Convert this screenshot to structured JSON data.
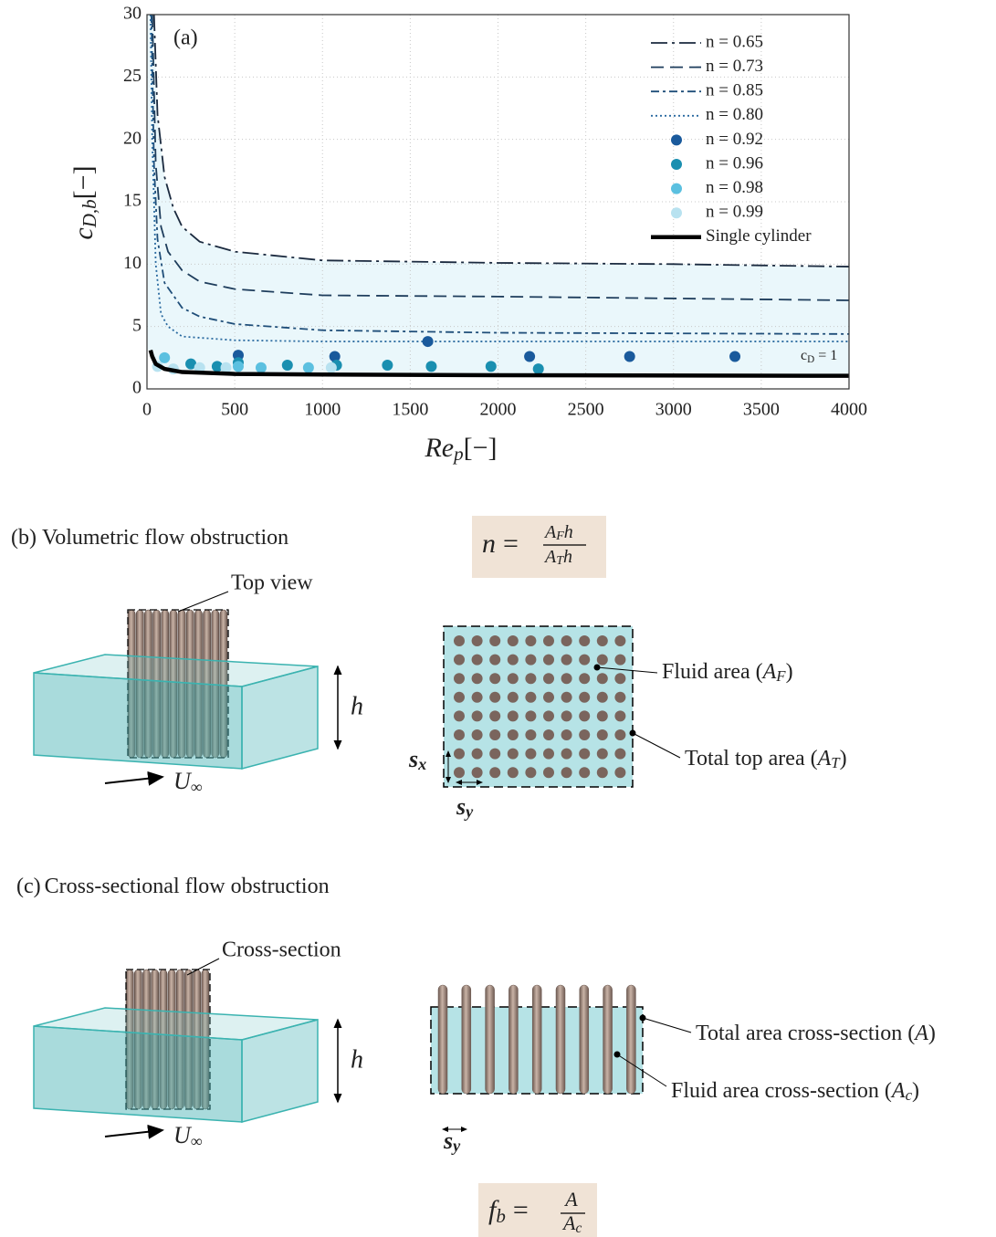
{
  "chart_data": {
    "type": "line",
    "panel_label": "(a)",
    "x_label": [
      "Re",
      "p",
      "[−]"
    ],
    "y_label": [
      "c",
      "D,b",
      "[−]"
    ],
    "annotation": [
      "c",
      "D",
      " = 1"
    ],
    "xlim": [
      0,
      4000
    ],
    "ylim": [
      0,
      30
    ],
    "xticks": [
      0,
      500,
      1000,
      1500,
      2000,
      2500,
      3000,
      3500,
      4000
    ],
    "yticks": [
      0,
      5,
      10,
      15,
      20,
      25,
      30
    ],
    "grid": true,
    "legend": "upper right",
    "band_fill": "#eaf7fb",
    "series": [
      {
        "name": "n = 0.65",
        "kind": "line",
        "linestyle": "dashdot",
        "color": "#1b2a3f",
        "x": [
          40,
          60,
          100,
          150,
          200,
          300,
          500,
          1000,
          2000,
          3000,
          4000
        ],
        "values": [
          30,
          22,
          17,
          14.5,
          13,
          11.8,
          11,
          10.3,
          10.1,
          10,
          9.8
        ]
      },
      {
        "name": "n = 0.73",
        "kind": "line",
        "linestyle": "dashed",
        "color": "#1e3d5c",
        "x": [
          30,
          50,
          80,
          120,
          200,
          300,
          500,
          1000,
          2000,
          4000
        ],
        "values": [
          30,
          18,
          13,
          11,
          9.5,
          8.6,
          8,
          7.5,
          7.4,
          7.1
        ]
      },
      {
        "name": "n = 0.85",
        "kind": "line",
        "linestyle": "dashdot-short",
        "color": "#1f4e79",
        "x": [
          25,
          40,
          60,
          100,
          200,
          300,
          500,
          1000,
          2000,
          4000
        ],
        "values": [
          30,
          18,
          12,
          8.5,
          6.5,
          5.8,
          5.2,
          4.7,
          4.5,
          4.4
        ]
      },
      {
        "name": "n = 0.80",
        "kind": "line",
        "linestyle": "dotted",
        "color": "#2a6aa0",
        "x": [
          20,
          30,
          50,
          80,
          120,
          200,
          500,
          1000,
          4000
        ],
        "values": [
          30,
          20,
          10,
          6,
          5,
          4.2,
          3.9,
          3.8,
          3.8
        ]
      },
      {
        "name": "n = 0.92",
        "kind": "scatter",
        "color": "#1a5a9c",
        "x": [
          520,
          1070,
          1600,
          2180,
          2750,
          3350
        ],
        "values": [
          2.7,
          2.6,
          3.8,
          2.6,
          2.6,
          2.6
        ]
      },
      {
        "name": "n = 0.96",
        "kind": "scatter",
        "color": "#1a8fb0",
        "x": [
          250,
          400,
          520,
          800,
          1080,
          1370,
          1620,
          1960,
          2230
        ],
        "values": [
          2.0,
          1.8,
          2.1,
          1.9,
          1.9,
          1.9,
          1.8,
          1.8,
          1.6
        ]
      },
      {
        "name": "n = 0.98",
        "kind": "scatter",
        "color": "#5bc0e0",
        "x": [
          100,
          520,
          650,
          920
        ],
        "values": [
          2.5,
          1.8,
          1.7,
          1.7
        ]
      },
      {
        "name": "n = 0.99",
        "kind": "scatter",
        "color": "#b8e2f0",
        "x": [
          60,
          150,
          300,
          450,
          1050
        ],
        "values": [
          1.8,
          1.6,
          1.7,
          1.7,
          1.7
        ]
      },
      {
        "name": "Single cylinder",
        "kind": "line",
        "linestyle": "solid",
        "color": "#000000",
        "x": [
          20,
          30,
          50,
          100,
          200,
          500,
          1000,
          2000,
          4000
        ],
        "values": [
          3.1,
          2.6,
          2.0,
          1.6,
          1.35,
          1.2,
          1.15,
          1.1,
          1.05
        ]
      }
    ]
  },
  "panel_b": {
    "label": "(b)",
    "title": "Volumetric flow obstruction",
    "top_view": "Top view",
    "h": "h",
    "u": [
      "U",
      "∞"
    ],
    "formula": {
      "lhs": "n",
      "eq": "=",
      "num": [
        "A",
        "F",
        "h"
      ],
      "den": [
        "A",
        "T",
        "h"
      ]
    },
    "fluid_area": [
      "Fluid area (",
      "A",
      "F",
      ")"
    ],
    "total_area": [
      "Total top area (",
      "A",
      "T",
      ")"
    ],
    "sx": [
      "s",
      "x"
    ],
    "sy": [
      "s",
      "y"
    ]
  },
  "panel_c": {
    "label": "(c)",
    "title": "Cross-sectional flow obstruction",
    "cross_section": "Cross-section",
    "h": "h",
    "u": [
      "U",
      "∞"
    ],
    "total_area": [
      "Total area cross-section (",
      "A",
      ")"
    ],
    "fluid_area": [
      "Fluid area cross-section (",
      "A",
      "c",
      ")"
    ],
    "sy": [
      "s",
      "y"
    ],
    "formula": {
      "lhs": [
        "f",
        "b"
      ],
      "eq": "=",
      "num": "A",
      "den": [
        "A",
        "c"
      ]
    }
  }
}
